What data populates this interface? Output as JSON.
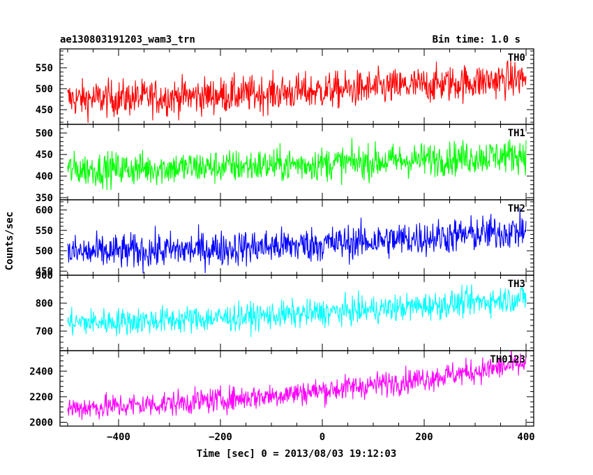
{
  "header": {
    "title": "ae130803191203_wam3_trn",
    "bin_time": "Bin time: 1.0 s"
  },
  "chart_data": {
    "type": "line",
    "xlabel": "Time [sec] 0 = 2013/08/03 19:12:03",
    "ylabel": "Counts/sec",
    "xlim": [
      -515,
      415
    ],
    "x_ticks": [
      -400,
      -200,
      0,
      200,
      400
    ],
    "x_tick_labels": [
      "−400",
      "−200",
      "0",
      "200",
      "400"
    ],
    "x_range": [
      -500,
      400
    ],
    "bin_time": 1.0,
    "panels": [
      {
        "name": "TH0",
        "color": "#ff0000",
        "ylim": [
          415,
          595
        ],
        "y_ticks": [
          450,
          500,
          550
        ],
        "trend_start": 475,
        "trend_end": 525,
        "noise": 40,
        "clip_top": true
      },
      {
        "name": "TH1",
        "color": "#00ff00",
        "ylim": [
          345,
          520
        ],
        "y_ticks": [
          350,
          400,
          450,
          500
        ],
        "trend_start": 415,
        "trend_end": 450,
        "noise": 36,
        "clip_top": false
      },
      {
        "name": "TH2",
        "color": "#0000ff",
        "ylim": [
          440,
          625
        ],
        "y_ticks": [
          450,
          500,
          550,
          600
        ],
        "trend_start": 495,
        "trend_end": 550,
        "noise": 40,
        "clip_top": false
      },
      {
        "name": "TH3",
        "color": "#00ffff",
        "ylim": [
          630,
          900
        ],
        "y_ticks": [
          700,
          800,
          900
        ],
        "trend_start": 730,
        "trend_end": 820,
        "noise": 45,
        "clip_top": true
      },
      {
        "name": "TH0123",
        "color": "#ff00ff",
        "ylim": [
          1970,
          2560
        ],
        "y_ticks": [
          2000,
          2200,
          2400
        ],
        "trend_start": 2110,
        "trend_end": 2460,
        "noise": 90,
        "clip_top": true
      }
    ]
  }
}
